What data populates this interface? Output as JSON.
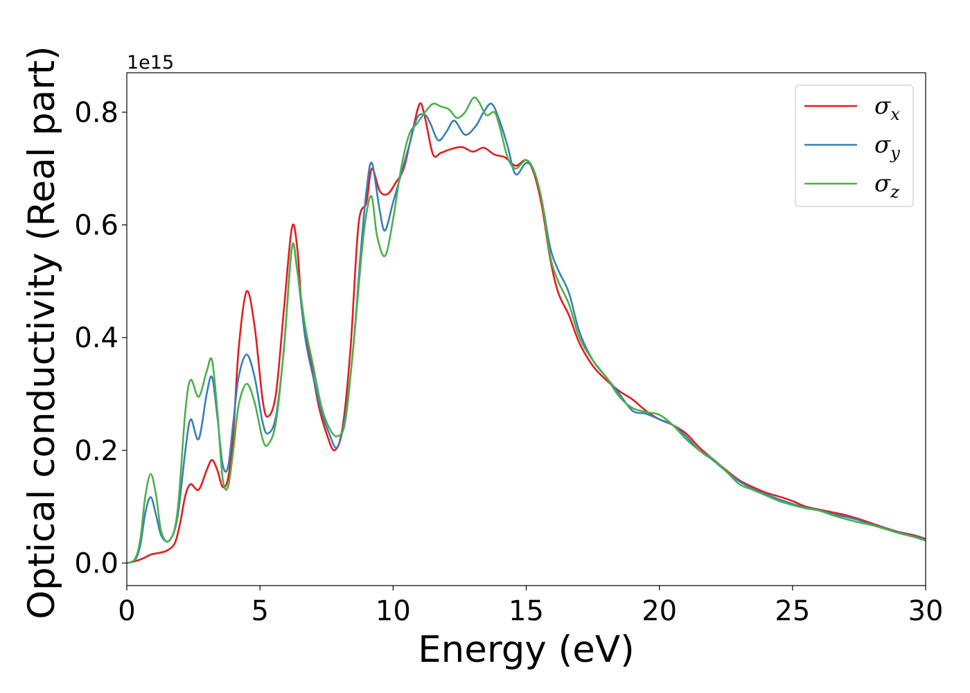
{
  "chart_data": {
    "type": "line",
    "xlabel": "Energy (eV)",
    "ylabel": "Optical conductivity (Real part)",
    "y_offset_label": "1e15",
    "xlim": [
      0,
      30
    ],
    "ylim": [
      -0.04,
      0.87
    ],
    "x_ticks": [
      0,
      5,
      10,
      15,
      20,
      25,
      30
    ],
    "x_tick_labels": [
      "0",
      "5",
      "10",
      "15",
      "20",
      "25",
      "30"
    ],
    "y_ticks": [
      0.0,
      0.2,
      0.4,
      0.6,
      0.8
    ],
    "y_tick_labels": [
      "0.0",
      "0.2",
      "0.4",
      "0.6",
      "0.8"
    ],
    "grid": false,
    "legend_position": "top-right",
    "series": [
      {
        "name": "σx",
        "symbol": "σ",
        "subscript": "x",
        "color": "#e41a1c",
        "points": [
          [
            0,
            0
          ],
          [
            0.3,
            0.003
          ],
          [
            0.6,
            0.008
          ],
          [
            0.9,
            0.015
          ],
          [
            1.2,
            0.018
          ],
          [
            1.5,
            0.022
          ],
          [
            1.8,
            0.035
          ],
          [
            2.0,
            0.07
          ],
          [
            2.2,
            0.12
          ],
          [
            2.4,
            0.14
          ],
          [
            2.7,
            0.13
          ],
          [
            3.0,
            0.165
          ],
          [
            3.2,
            0.183
          ],
          [
            3.4,
            0.165
          ],
          [
            3.6,
            0.135
          ],
          [
            3.8,
            0.15
          ],
          [
            4.0,
            0.23
          ],
          [
            4.2,
            0.38
          ],
          [
            4.5,
            0.482
          ],
          [
            4.8,
            0.42
          ],
          [
            5.1,
            0.29
          ],
          [
            5.3,
            0.26
          ],
          [
            5.6,
            0.3
          ],
          [
            5.9,
            0.45
          ],
          [
            6.2,
            0.595
          ],
          [
            6.4,
            0.56
          ],
          [
            6.6,
            0.44
          ],
          [
            6.9,
            0.36
          ],
          [
            7.2,
            0.28
          ],
          [
            7.5,
            0.23
          ],
          [
            7.8,
            0.2
          ],
          [
            8.1,
            0.24
          ],
          [
            8.4,
            0.38
          ],
          [
            8.7,
            0.6
          ],
          [
            9.0,
            0.64
          ],
          [
            9.2,
            0.7
          ],
          [
            9.5,
            0.66
          ],
          [
            9.8,
            0.655
          ],
          [
            10.1,
            0.675
          ],
          [
            10.4,
            0.7
          ],
          [
            10.7,
            0.76
          ],
          [
            11.0,
            0.815
          ],
          [
            11.2,
            0.79
          ],
          [
            11.5,
            0.725
          ],
          [
            11.8,
            0.728
          ],
          [
            12.2,
            0.735
          ],
          [
            12.6,
            0.738
          ],
          [
            13.0,
            0.73
          ],
          [
            13.4,
            0.737
          ],
          [
            13.8,
            0.725
          ],
          [
            14.2,
            0.72
          ],
          [
            14.6,
            0.705
          ],
          [
            15.0,
            0.715
          ],
          [
            15.3,
            0.69
          ],
          [
            15.6,
            0.63
          ],
          [
            15.9,
            0.54
          ],
          [
            16.2,
            0.48
          ],
          [
            16.6,
            0.44
          ],
          [
            17.0,
            0.39
          ],
          [
            17.5,
            0.35
          ],
          [
            18.0,
            0.325
          ],
          [
            18.5,
            0.305
          ],
          [
            19.0,
            0.29
          ],
          [
            19.5,
            0.27
          ],
          [
            20.0,
            0.255
          ],
          [
            20.5,
            0.245
          ],
          [
            21.0,
            0.23
          ],
          [
            21.5,
            0.205
          ],
          [
            22.0,
            0.185
          ],
          [
            22.5,
            0.165
          ],
          [
            23.0,
            0.147
          ],
          [
            23.5,
            0.135
          ],
          [
            24.0,
            0.125
          ],
          [
            24.5,
            0.118
          ],
          [
            25.0,
            0.11
          ],
          [
            25.5,
            0.1
          ],
          [
            26.0,
            0.095
          ],
          [
            26.5,
            0.09
          ],
          [
            27.0,
            0.085
          ],
          [
            27.5,
            0.078
          ],
          [
            28.0,
            0.07
          ],
          [
            28.5,
            0.062
          ],
          [
            29.0,
            0.055
          ],
          [
            29.5,
            0.05
          ],
          [
            30.0,
            0.043
          ]
        ]
      },
      {
        "name": "σy",
        "symbol": "σ",
        "subscript": "y",
        "color": "#377eb8",
        "points": [
          [
            0,
            0
          ],
          [
            0.3,
            0.005
          ],
          [
            0.5,
            0.03
          ],
          [
            0.7,
            0.09
          ],
          [
            0.9,
            0.117
          ],
          [
            1.1,
            0.085
          ],
          [
            1.3,
            0.048
          ],
          [
            1.6,
            0.04
          ],
          [
            1.9,
            0.08
          ],
          [
            2.2,
            0.2
          ],
          [
            2.4,
            0.255
          ],
          [
            2.7,
            0.22
          ],
          [
            3.0,
            0.3
          ],
          [
            3.2,
            0.33
          ],
          [
            3.4,
            0.26
          ],
          [
            3.6,
            0.175
          ],
          [
            3.8,
            0.17
          ],
          [
            4.0,
            0.25
          ],
          [
            4.2,
            0.33
          ],
          [
            4.5,
            0.37
          ],
          [
            4.8,
            0.33
          ],
          [
            5.1,
            0.25
          ],
          [
            5.3,
            0.23
          ],
          [
            5.6,
            0.26
          ],
          [
            5.9,
            0.38
          ],
          [
            6.2,
            0.56
          ],
          [
            6.4,
            0.52
          ],
          [
            6.7,
            0.4
          ],
          [
            7.0,
            0.33
          ],
          [
            7.3,
            0.27
          ],
          [
            7.6,
            0.23
          ],
          [
            7.9,
            0.205
          ],
          [
            8.2,
            0.26
          ],
          [
            8.5,
            0.38
          ],
          [
            8.8,
            0.56
          ],
          [
            9.0,
            0.66
          ],
          [
            9.2,
            0.71
          ],
          [
            9.5,
            0.625
          ],
          [
            9.7,
            0.59
          ],
          [
            10.0,
            0.64
          ],
          [
            10.3,
            0.69
          ],
          [
            10.6,
            0.74
          ],
          [
            10.9,
            0.79
          ],
          [
            11.2,
            0.795
          ],
          [
            11.4,
            0.78
          ],
          [
            11.7,
            0.75
          ],
          [
            12.0,
            0.765
          ],
          [
            12.3,
            0.785
          ],
          [
            12.7,
            0.76
          ],
          [
            13.1,
            0.775
          ],
          [
            13.4,
            0.8
          ],
          [
            13.7,
            0.815
          ],
          [
            14.0,
            0.785
          ],
          [
            14.3,
            0.74
          ],
          [
            14.6,
            0.69
          ],
          [
            15.0,
            0.71
          ],
          [
            15.3,
            0.695
          ],
          [
            15.6,
            0.64
          ],
          [
            15.9,
            0.56
          ],
          [
            16.2,
            0.52
          ],
          [
            16.6,
            0.48
          ],
          [
            17.0,
            0.41
          ],
          [
            17.5,
            0.36
          ],
          [
            18.0,
            0.33
          ],
          [
            18.5,
            0.3
          ],
          [
            19.0,
            0.27
          ],
          [
            19.5,
            0.265
          ],
          [
            20.0,
            0.255
          ],
          [
            20.5,
            0.245
          ],
          [
            21.0,
            0.225
          ],
          [
            21.5,
            0.2
          ],
          [
            22.0,
            0.183
          ],
          [
            22.5,
            0.163
          ],
          [
            23.0,
            0.145
          ],
          [
            23.5,
            0.132
          ],
          [
            24.0,
            0.122
          ],
          [
            24.5,
            0.113
          ],
          [
            25.0,
            0.105
          ],
          [
            25.5,
            0.098
          ],
          [
            26.0,
            0.094
          ],
          [
            26.5,
            0.087
          ],
          [
            27.0,
            0.082
          ],
          [
            27.5,
            0.076
          ],
          [
            28.0,
            0.068
          ],
          [
            28.5,
            0.061
          ],
          [
            29.0,
            0.054
          ],
          [
            29.5,
            0.048
          ],
          [
            30.0,
            0.042
          ]
        ]
      },
      {
        "name": "σz",
        "symbol": "σ",
        "subscript": "z",
        "color": "#4daf4a",
        "points": [
          [
            0,
            0
          ],
          [
            0.3,
            0.007
          ],
          [
            0.5,
            0.04
          ],
          [
            0.7,
            0.12
          ],
          [
            0.9,
            0.158
          ],
          [
            1.1,
            0.12
          ],
          [
            1.3,
            0.055
          ],
          [
            1.6,
            0.04
          ],
          [
            1.9,
            0.09
          ],
          [
            2.2,
            0.27
          ],
          [
            2.4,
            0.325
          ],
          [
            2.7,
            0.295
          ],
          [
            3.0,
            0.34
          ],
          [
            3.2,
            0.36
          ],
          [
            3.4,
            0.27
          ],
          [
            3.6,
            0.15
          ],
          [
            3.8,
            0.135
          ],
          [
            4.0,
            0.2
          ],
          [
            4.2,
            0.28
          ],
          [
            4.5,
            0.318
          ],
          [
            4.8,
            0.285
          ],
          [
            5.1,
            0.22
          ],
          [
            5.3,
            0.21
          ],
          [
            5.6,
            0.25
          ],
          [
            5.9,
            0.38
          ],
          [
            6.2,
            0.56
          ],
          [
            6.4,
            0.52
          ],
          [
            6.7,
            0.42
          ],
          [
            7.0,
            0.35
          ],
          [
            7.3,
            0.28
          ],
          [
            7.6,
            0.24
          ],
          [
            7.9,
            0.225
          ],
          [
            8.2,
            0.25
          ],
          [
            8.5,
            0.38
          ],
          [
            8.8,
            0.54
          ],
          [
            9.0,
            0.62
          ],
          [
            9.2,
            0.65
          ],
          [
            9.4,
            0.58
          ],
          [
            9.7,
            0.545
          ],
          [
            10.0,
            0.61
          ],
          [
            10.3,
            0.7
          ],
          [
            10.6,
            0.76
          ],
          [
            10.9,
            0.78
          ],
          [
            11.2,
            0.8
          ],
          [
            11.5,
            0.815
          ],
          [
            11.8,
            0.81
          ],
          [
            12.1,
            0.805
          ],
          [
            12.4,
            0.79
          ],
          [
            12.7,
            0.8
          ],
          [
            13.0,
            0.825
          ],
          [
            13.2,
            0.82
          ],
          [
            13.5,
            0.795
          ],
          [
            13.8,
            0.8
          ],
          [
            14.0,
            0.775
          ],
          [
            14.3,
            0.72
          ],
          [
            14.6,
            0.7
          ],
          [
            15.0,
            0.715
          ],
          [
            15.3,
            0.695
          ],
          [
            15.6,
            0.64
          ],
          [
            15.9,
            0.545
          ],
          [
            16.2,
            0.5
          ],
          [
            16.6,
            0.46
          ],
          [
            17.0,
            0.4
          ],
          [
            17.5,
            0.36
          ],
          [
            18.0,
            0.33
          ],
          [
            18.5,
            0.295
          ],
          [
            19.0,
            0.275
          ],
          [
            19.5,
            0.268
          ],
          [
            20.0,
            0.263
          ],
          [
            20.5,
            0.245
          ],
          [
            21.0,
            0.22
          ],
          [
            21.5,
            0.2
          ],
          [
            22.0,
            0.185
          ],
          [
            22.5,
            0.163
          ],
          [
            23.0,
            0.14
          ],
          [
            23.5,
            0.13
          ],
          [
            24.0,
            0.12
          ],
          [
            24.5,
            0.11
          ],
          [
            25.0,
            0.103
          ],
          [
            25.5,
            0.097
          ],
          [
            26.0,
            0.093
          ],
          [
            26.5,
            0.085
          ],
          [
            27.0,
            0.078
          ],
          [
            27.5,
            0.072
          ],
          [
            28.0,
            0.067
          ],
          [
            28.5,
            0.06
          ],
          [
            29.0,
            0.053
          ],
          [
            29.5,
            0.047
          ],
          [
            30.0,
            0.04
          ]
        ]
      }
    ]
  }
}
